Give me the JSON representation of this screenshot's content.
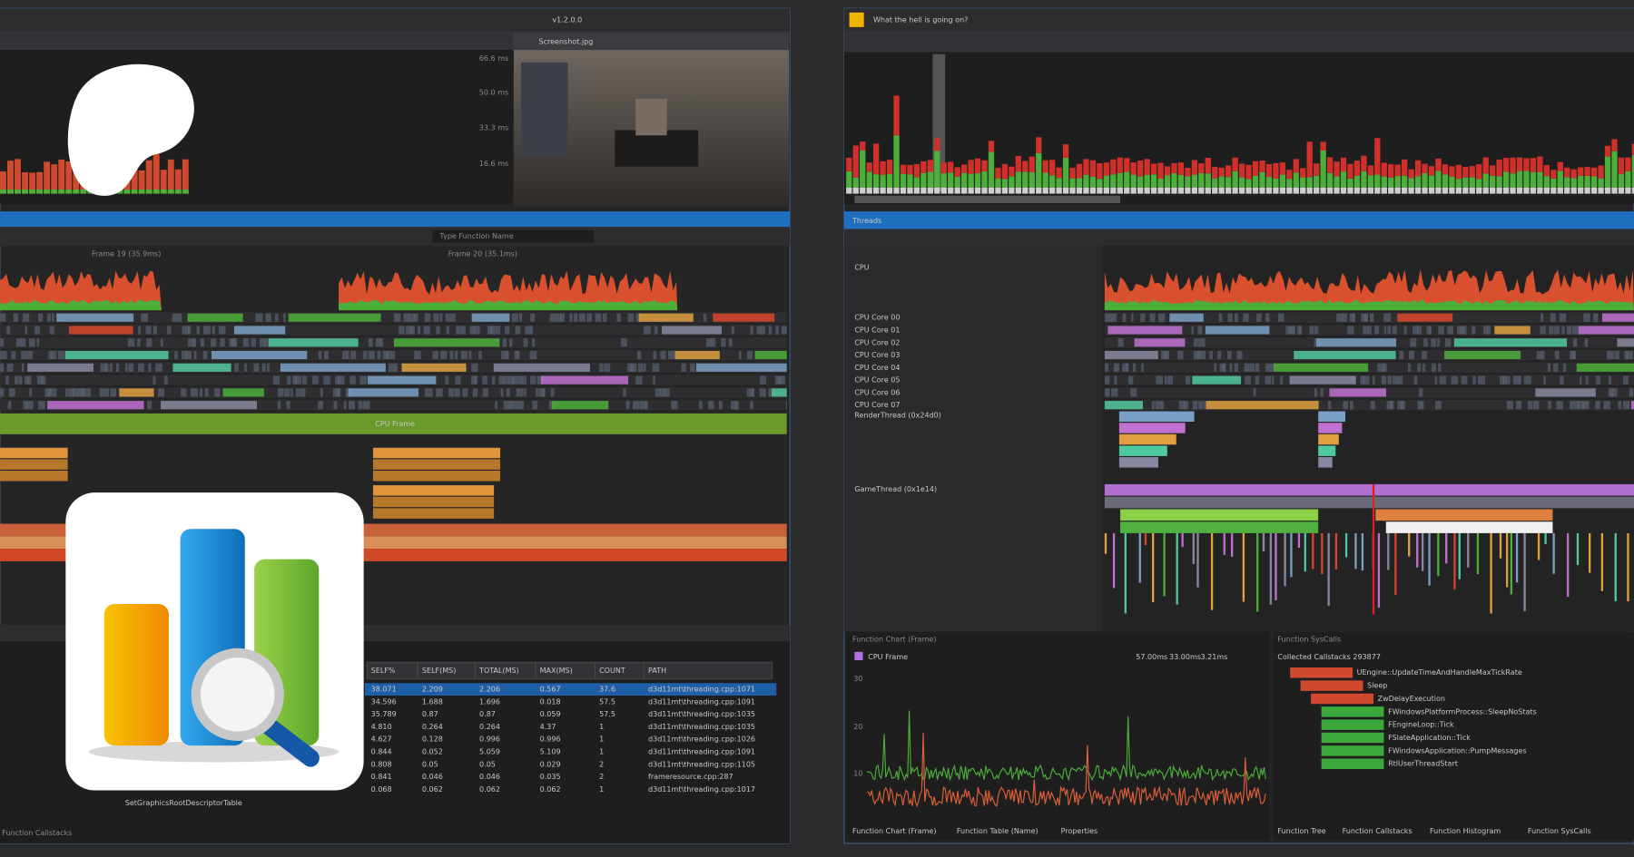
{
  "left_window": {
    "version": "v1.2.0.0",
    "screenshot_tab": "Screenshot.jpg",
    "frame_axis": [
      "66.6 ms",
      "50.0 ms",
      "33.3 ms",
      "16.6 ms"
    ],
    "frames": [
      "Frame 19 (35.9ms)",
      "Frame 20 (35.1ms)"
    ],
    "search_placeholder": "Type Function Name",
    "cpu_frame": "CPU Frame",
    "table": {
      "headers": [
        "SELF%",
        "SELF(MS)",
        "TOTAL(MS)",
        "MAX(MS)",
        "COUNT",
        "PATH"
      ],
      "rows": [
        [
          "38.071",
          "2.209",
          "2.206",
          "0.567",
          "37.6",
          "d3d11mt\\threading.cpp:1071"
        ],
        [
          "34.596",
          "1.688",
          "1.696",
          "0.018",
          "57.5",
          "d3d11mt\\threading.cpp:1091"
        ],
        [
          "35.789",
          "0.87",
          "0.87",
          "0.059",
          "57.5",
          "d3d11mt\\threading.cpp:1035"
        ],
        [
          "4.810",
          "0.264",
          "0.264",
          "4.37",
          "1",
          "d3d11mt\\threading.cpp:1035"
        ],
        [
          "4.627",
          "0.128",
          "0.996",
          "0.996",
          "1",
          "d3d11mt\\threading.cpp:1026"
        ],
        [
          "0.844",
          "0.052",
          "5.059",
          "5.109",
          "1",
          "d3d11mt\\threading.cpp:1091"
        ],
        [
          "0.808",
          "0.05",
          "0.05",
          "0.029",
          "2",
          "d3d11mt\\threading.cpp:1105"
        ],
        [
          "0.841",
          "0.046",
          "0.046",
          "0.035",
          "2",
          "frameresource.cpp:287"
        ],
        [
          "0.068",
          "0.062",
          "0.062",
          "0.062",
          "1",
          "d3d11mt\\threading.cpp:1017"
        ]
      ],
      "row_label": "SetGraphicsRootDescriptorTable"
    },
    "tabs": [
      "Function Callstacks"
    ]
  },
  "right_window": {
    "title": "What the hell is going on?",
    "threads_header": "Threads",
    "cpu_label": "CPU",
    "cores": [
      "CPU Core 00",
      "CPU Core 01",
      "CPU Core 02",
      "CPU Core 03",
      "CPU Core 04",
      "CPU Core 05",
      "CPU Core 06",
      "CPU Core 07"
    ],
    "render_thread": "RenderThread (0x24d0)",
    "game_thread": "GameThread (0x1e14)",
    "function_chart": {
      "title": "Function Chart (Frame)",
      "function": "CPU Frame",
      "stats": [
        "57.00ms",
        "33.00ms",
        "3.21ms"
      ],
      "axis": [
        "30",
        "20",
        "10"
      ]
    },
    "syscalls": {
      "title": "Function SysCalls",
      "header": "Collected Callstacks 293877",
      "items": [
        "UEngine::UpdateTimeAndHandleMaxTickRate",
        "Sleep",
        "ZwDelayExecution",
        "FWindowsPlatformProcess::SleepNoStats",
        "FEngineLoop::Tick",
        "FSlateApplication::Tick",
        "FWindowsApplication::PumpMessages",
        "RtlUserThreadStart"
      ]
    },
    "tabs": [
      "Function Chart (Frame)",
      "Function Table (Name)",
      "Properties",
      "Function Tree",
      "Function Callstacks",
      "Function Histogram",
      "Function SysCalls"
    ]
  }
}
